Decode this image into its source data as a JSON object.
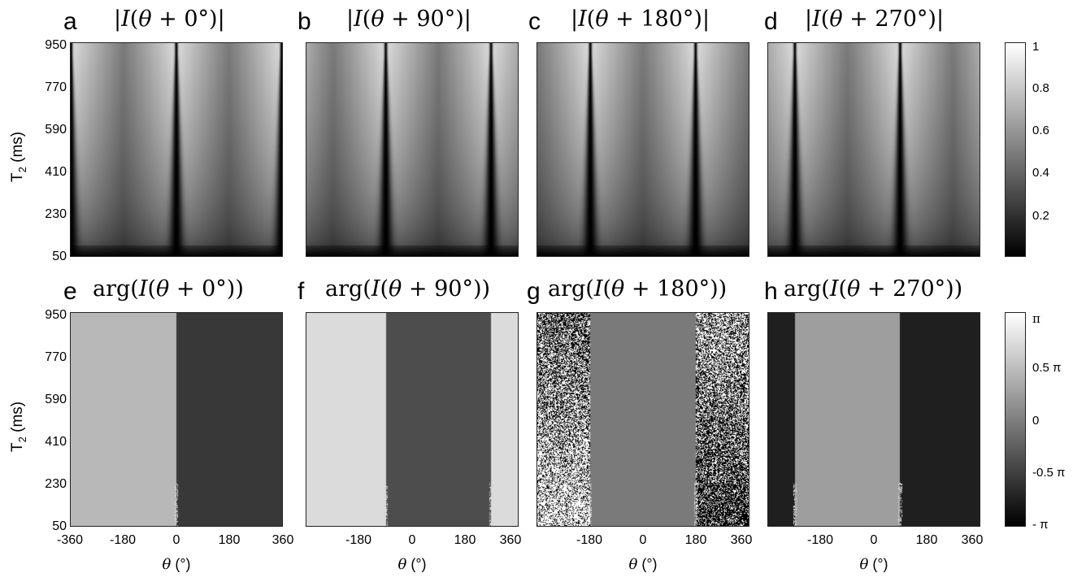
{
  "chart_data": [
    {
      "type": "heatmap",
      "panel": "a",
      "title": "|I(θ + 0°)|",
      "title_parts": [
        "|",
        "I",
        "(",
        "θ",
        " + 0°)|"
      ],
      "x_range": [
        -360,
        360
      ],
      "y_range": [
        50,
        950
      ],
      "xticks": [],
      "ylabel": "T2 (ms)",
      "yticks": [
        "50",
        "230",
        "410",
        "590",
        "770",
        "950"
      ],
      "kind": "magnitude",
      "null_positions_deg": [
        -360,
        0,
        360
      ]
    },
    {
      "type": "heatmap",
      "panel": "b",
      "title": "|I(θ + 90°)|",
      "title_parts": [
        "|",
        "I",
        "(",
        "θ",
        " + 90°)|"
      ],
      "x_range": [
        -360,
        360
      ],
      "y_range": [
        50,
        950
      ],
      "xticks": [],
      "kind": "magnitude",
      "null_positions_deg": [
        -90,
        270
      ]
    },
    {
      "type": "heatmap",
      "panel": "c",
      "title": "|I(θ + 180°)|",
      "title_parts": [
        "|",
        "I",
        "(",
        "θ",
        " + 180°)|"
      ],
      "x_range": [
        -360,
        360
      ],
      "y_range": [
        50,
        950
      ],
      "xticks": [],
      "kind": "magnitude",
      "null_positions_deg": [
        -180,
        180
      ]
    },
    {
      "type": "heatmap",
      "panel": "d",
      "title": "|I(θ + 270°)|",
      "title_parts": [
        "|",
        "I",
        "(",
        "θ",
        " + 270°)|"
      ],
      "x_range": [
        -360,
        360
      ],
      "y_range": [
        50,
        950
      ],
      "xticks": [],
      "kind": "magnitude",
      "null_positions_deg": [
        -270,
        90
      ]
    },
    {
      "type": "heatmap",
      "panel": "e",
      "title": "arg(I(θ + 0°))",
      "title_parts": [
        "arg(",
        "I",
        "(",
        "θ",
        " + 0°))"
      ],
      "x_range": [
        -360,
        360
      ],
      "y_range": [
        50,
        950
      ],
      "xticks": [
        "-360",
        "-180",
        "0",
        "180",
        "360"
      ],
      "xlabel": "θ (°)",
      "ylabel": "T2 (ms)",
      "yticks": [
        "50",
        "230",
        "410",
        "590",
        "770",
        "950"
      ],
      "kind": "phase",
      "phase_boundaries_deg": [
        0
      ],
      "phase_regions": [
        {
          "from": -360,
          "to": 0,
          "level": 0.72
        },
        {
          "from": 0,
          "to": 360,
          "level": 0.22
        }
      ]
    },
    {
      "type": "heatmap",
      "panel": "f",
      "title": "arg(I(θ + 90°))",
      "title_parts": [
        "arg(",
        "I",
        "(",
        "θ",
        " + 90°))"
      ],
      "x_range": [
        -360,
        360
      ],
      "y_range": [
        50,
        950
      ],
      "xticks": [
        "-180",
        "0",
        "180",
        "360"
      ],
      "xlabel": "θ (°)",
      "kind": "phase",
      "phase_boundaries_deg": [
        -90,
        270
      ],
      "phase_regions": [
        {
          "from": -360,
          "to": -90,
          "level": 0.86
        },
        {
          "from": -90,
          "to": 270,
          "level": 0.3
        },
        {
          "from": 270,
          "to": 360,
          "level": 0.86
        }
      ]
    },
    {
      "type": "heatmap",
      "panel": "g",
      "title": "arg(I(θ + 180°))",
      "title_parts": [
        "arg(",
        "I",
        "(",
        "θ",
        " + 180°))"
      ],
      "x_range": [
        -360,
        360
      ],
      "y_range": [
        50,
        950
      ],
      "xticks": [
        "-180",
        "0",
        "180",
        "360"
      ],
      "xlabel": "θ (°)",
      "kind": "phase",
      "phase_boundaries_deg": [
        -180,
        180
      ],
      "phase_regions": [
        {
          "from": -360,
          "to": -180,
          "level": 1.0,
          "noise": true
        },
        {
          "from": -180,
          "to": 180,
          "level": 0.48
        },
        {
          "from": 180,
          "to": 360,
          "level": 0.0,
          "noise": true
        }
      ]
    },
    {
      "type": "heatmap",
      "panel": "h",
      "title": "arg(I(θ + 270°))",
      "title_parts": [
        "arg(",
        "I",
        "(",
        "θ",
        " + 270°))"
      ],
      "x_range": [
        -360,
        360
      ],
      "y_range": [
        50,
        950
      ],
      "xticks": [
        "-180",
        "0",
        "180",
        "360"
      ],
      "xlabel": "θ (°)",
      "kind": "phase",
      "phase_boundaries_deg": [
        -270,
        90
      ],
      "phase_regions": [
        {
          "from": -360,
          "to": -270,
          "level": 0.12
        },
        {
          "from": -270,
          "to": 90,
          "level": 0.62
        },
        {
          "from": 90,
          "to": 360,
          "level": 0.12
        }
      ]
    }
  ],
  "colorbars": {
    "magnitude": {
      "range": [
        0,
        1
      ],
      "ticks": [
        "1",
        "0.8",
        "0.6",
        "0.4",
        "0.2"
      ],
      "tick_values": [
        1,
        0.8,
        0.6,
        0.4,
        0.2
      ],
      "colormap": "gray"
    },
    "phase": {
      "range": [
        -3.14159,
        3.14159
      ],
      "ticks": [
        "π",
        "0.5 π",
        "0",
        "-0.5 π",
        "- π"
      ],
      "tick_values": [
        3.14159,
        1.5708,
        0,
        -1.5708,
        -3.14159
      ],
      "colormap": "gray"
    }
  }
}
